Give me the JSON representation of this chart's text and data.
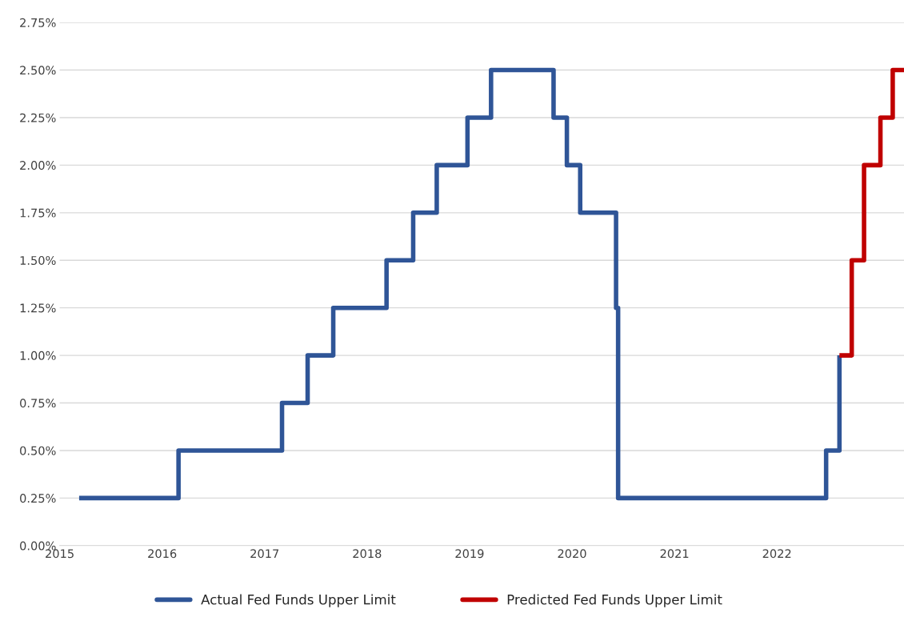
{
  "chart_data": {
    "type": "step",
    "series": [
      {
        "name": "Actual Fed Funds Upper Limit",
        "color": "#2f5597",
        "x": [
          2015.19,
          2016.16,
          2017.17,
          2017.42,
          2017.67,
          2018.19,
          2018.45,
          2018.68,
          2018.98,
          2019.21,
          2019.82,
          2019.95,
          2020.08,
          2020.43,
          2020.45,
          2022.48,
          2022.61
        ],
        "values": [
          0.25,
          0.5,
          0.75,
          1.0,
          1.25,
          1.5,
          1.75,
          2.0,
          2.25,
          2.5,
          2.25,
          2.0,
          1.75,
          1.25,
          0.25,
          0.5,
          1.0
        ]
      },
      {
        "name": "Predicted Fed Funds Upper Limit",
        "color": "#c00000",
        "x": [
          2022.61,
          2022.73,
          2022.85,
          2023.01,
          2023.13,
          2023.24
        ],
        "values": [
          1.0,
          1.5,
          2.0,
          2.25,
          2.5,
          2.5
        ]
      }
    ],
    "xlim": [
      2015,
      2023.24
    ],
    "xticks": [
      2015,
      2016,
      2017,
      2018,
      2019,
      2020,
      2021,
      2022
    ],
    "ylim": [
      0,
      2.75
    ],
    "yticks": [
      {
        "value": 0,
        "label": "0.00%"
      },
      {
        "value": 0.25,
        "label": "0.25%"
      },
      {
        "value": 0.5,
        "label": "0.50%"
      },
      {
        "value": 0.75,
        "label": "0.75%"
      },
      {
        "value": 1.0,
        "label": "1.00%"
      },
      {
        "value": 1.25,
        "label": "1.25%"
      },
      {
        "value": 1.5,
        "label": "1.50%"
      },
      {
        "value": 1.75,
        "label": "1.75%"
      },
      {
        "value": 2.0,
        "label": "2.00%"
      },
      {
        "value": 2.25,
        "label": "2.25%"
      },
      {
        "value": 2.5,
        "label": "2.50%"
      },
      {
        "value": 2.75,
        "label": "2.75%"
      }
    ],
    "grid": "y",
    "legend": "bottom"
  }
}
